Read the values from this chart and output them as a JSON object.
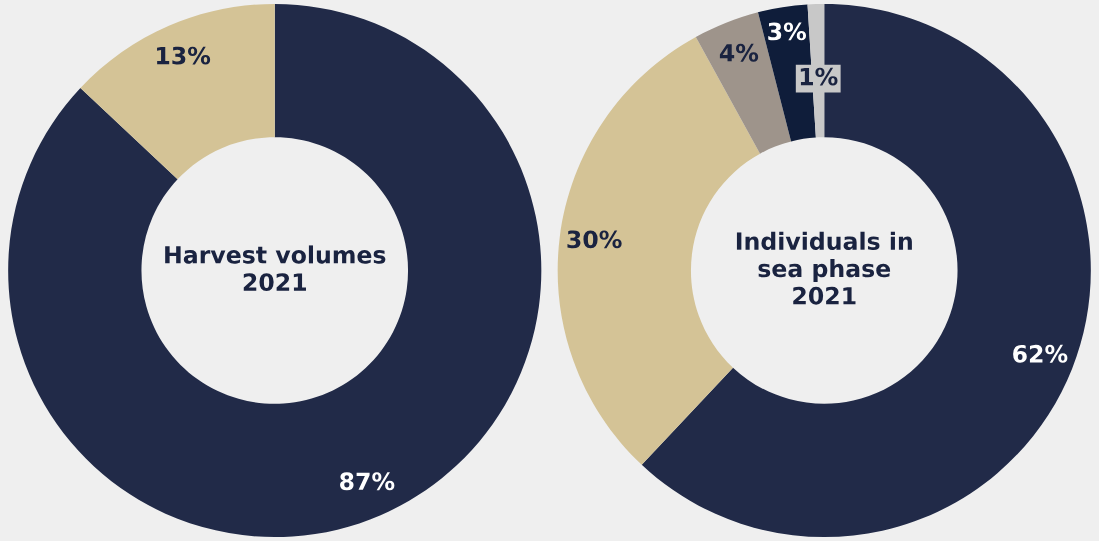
{
  "chart_data": [
    {
      "type": "donut",
      "title": "Harvest volumes\n2021",
      "categories": [
        null,
        null
      ],
      "values": [
        87,
        13
      ],
      "colors": [
        "#212a48",
        "#d4c396"
      ],
      "value_labels": [
        "87%",
        "13%"
      ]
    },
    {
      "type": "donut",
      "title": "Individuals in\nsea phase\n2021",
      "categories": [
        null,
        null,
        null,
        null,
        null
      ],
      "values": [
        62,
        30,
        4,
        3,
        1
      ],
      "colors": [
        "#212a48",
        "#d4c396",
        "#9e948b",
        "#0f1d3a",
        "#c8c8c8"
      ],
      "value_labels": [
        "62%",
        "30%",
        "4%",
        "3%",
        "1%"
      ]
    }
  ]
}
